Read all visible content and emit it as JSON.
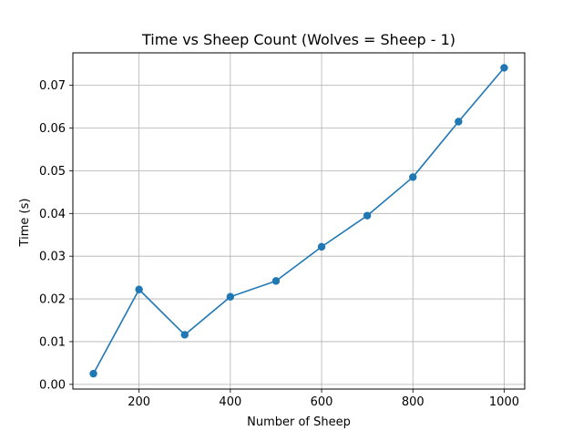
{
  "chart_data": {
    "type": "line",
    "title": "Time vs Sheep Count (Wolves = Sheep - 1)",
    "xlabel": "Number of Sheep",
    "ylabel": "Time (s)",
    "grid": true,
    "marker": "circle",
    "line_color": "#1f77b4",
    "xlim": [
      55,
      1045
    ],
    "ylim": [
      -0.0011,
      0.0776
    ],
    "xticks": [
      200,
      400,
      600,
      800,
      1000
    ],
    "xtick_labels": [
      "200",
      "400",
      "600",
      "800",
      "1000"
    ],
    "yticks": [
      0.0,
      0.01,
      0.02,
      0.03,
      0.04,
      0.05,
      0.06,
      0.07
    ],
    "ytick_labels": [
      "0.00",
      "0.01",
      "0.02",
      "0.03",
      "0.04",
      "0.05",
      "0.06",
      "0.07"
    ],
    "x": [
      100,
      200,
      300,
      400,
      500,
      600,
      700,
      800,
      900,
      1000
    ],
    "series": [
      {
        "values": [
          0.0025,
          0.0222,
          0.0116,
          0.0205,
          0.0242,
          0.0322,
          0.0395,
          0.0485,
          0.0615,
          0.0741
        ]
      }
    ]
  }
}
